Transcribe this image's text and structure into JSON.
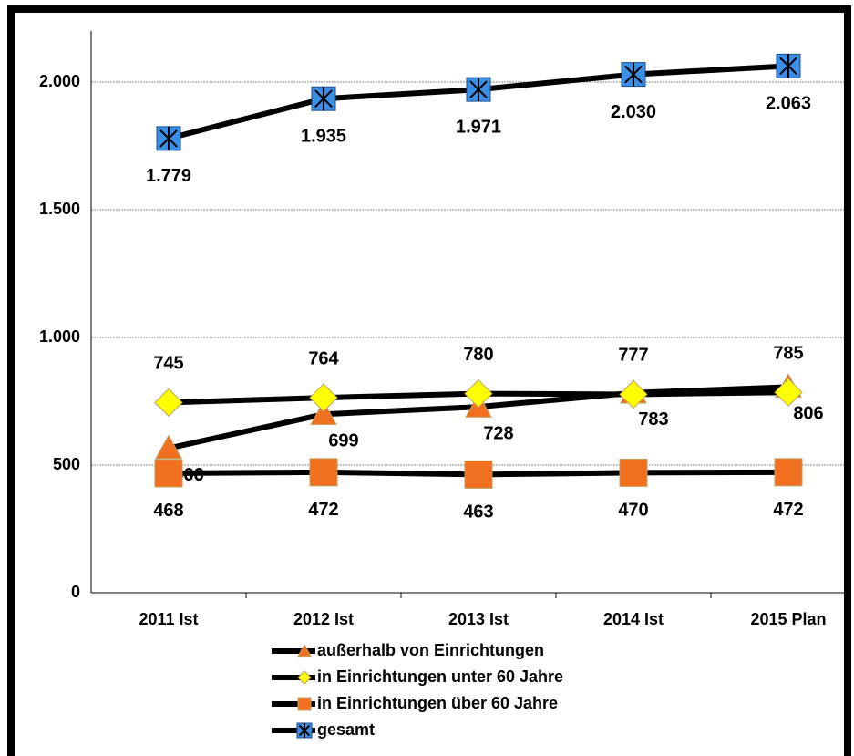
{
  "chart_data": {
    "type": "line",
    "categories": [
      "2011 Ist",
      "2012 Ist",
      "2013 Ist",
      "2014 Ist",
      "2015 Plan"
    ],
    "series": [
      {
        "name": "außerhalb von Einrichtungen",
        "color": "#f07020",
        "marker": "triangle",
        "values": [
          566,
          699,
          728,
          783,
          806
        ]
      },
      {
        "name": "in Einrichtungen unter 60 Jahre",
        "color": "#ffff00",
        "marker": "diamond",
        "values": [
          745,
          764,
          780,
          777,
          785
        ]
      },
      {
        "name": "in Einrichtungen über 60 Jahre",
        "color": "#f07020",
        "marker": "square",
        "values": [
          468,
          472,
          463,
          470,
          472
        ]
      },
      {
        "name": "gesamt",
        "color": "#3a8ee6",
        "marker": "asterisk-square",
        "values": [
          1779,
          1935,
          1971,
          2030,
          2063
        ],
        "value_labels": [
          "1.779",
          "1.935",
          "1.971",
          "2.030",
          "2.063"
        ]
      }
    ],
    "ylim": [
      0,
      2200
    ],
    "yticks": [
      0,
      500,
      {
        "value": 1000,
        "label": "1.000"
      },
      {
        "value": 1500,
        "label": "1.500"
      },
      {
        "value": 2000,
        "label": "2.000"
      }
    ],
    "grid": true
  }
}
